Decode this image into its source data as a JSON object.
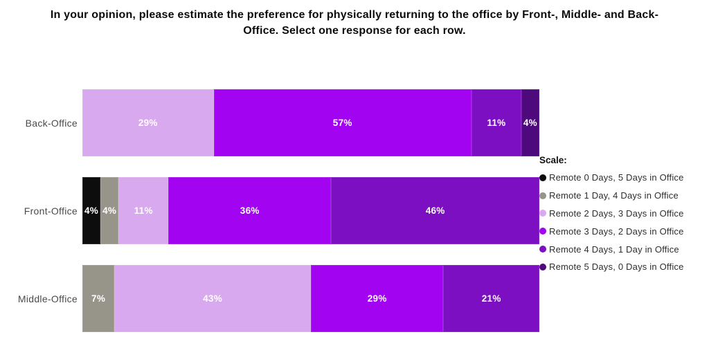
{
  "chart_data": {
    "type": "bar",
    "orientation": "horizontal",
    "stacked": true,
    "title": "In your opinion, please estimate the preference for physically returning to the office by Front-, Middle- and Back-Office. Select one response for each row.",
    "legend_title": "Scale:",
    "legend_position": "right",
    "grid": false,
    "xlim": [
      0,
      100
    ],
    "value_suffix": "%",
    "categories": [
      "Back-Office",
      "Front-Office",
      "Middle-Office"
    ],
    "series": [
      {
        "name": "Remote 0 Days, 5 Days in Office",
        "color": "#0d0d0d",
        "values": [
          0,
          4,
          0
        ]
      },
      {
        "name": "Remote 1 Day, 4 Days in Office",
        "color": "#97948a",
        "values": [
          0,
          4,
          7
        ]
      },
      {
        "name": "Remote 2 Days, 3 Days in Office",
        "color": "#d9a9ef",
        "values": [
          29,
          11,
          43
        ]
      },
      {
        "name": "Remote 3 Days, 2 Days in Office",
        "color": "#a203f0",
        "values": [
          57,
          36,
          29
        ]
      },
      {
        "name": "Remote 4 Days, 1 Day in Office",
        "color": "#7d0fc3",
        "values": [
          11,
          46,
          21
        ]
      },
      {
        "name": "Remote 5 Days, 0 Days in Office",
        "color": "#4e0a7d",
        "values": [
          4,
          0,
          0
        ]
      }
    ],
    "label_color": "#ffffff"
  }
}
